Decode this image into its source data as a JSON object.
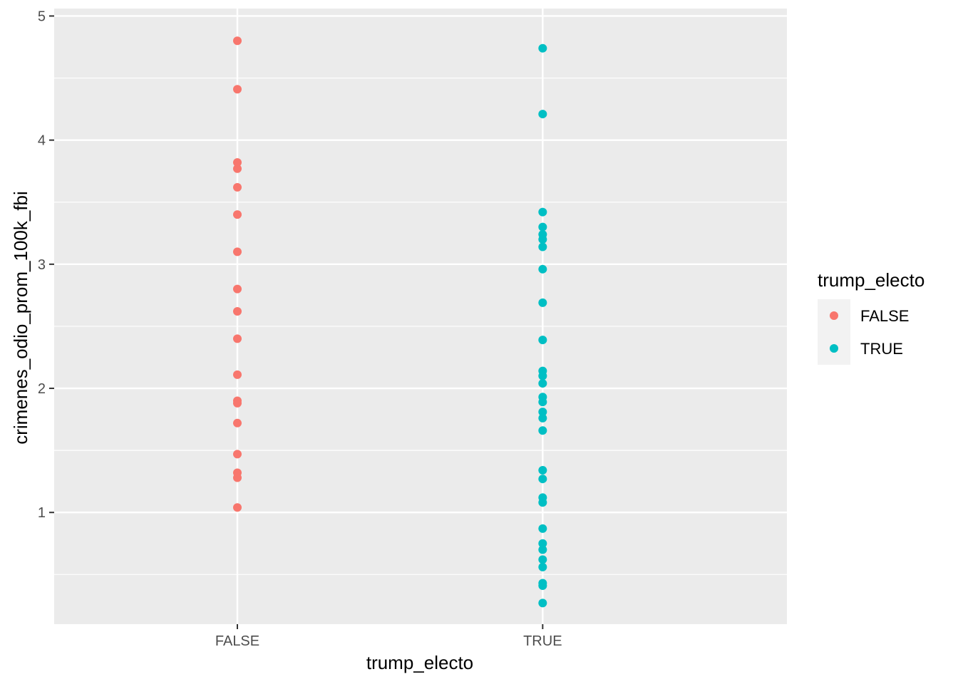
{
  "chart_data": {
    "type": "scatter",
    "xlabel": "trump_electo",
    "ylabel": "crimenes_odio_prom_100k_fbi",
    "categories": [
      "FALSE",
      "TRUE"
    ],
    "ylim": [
      0.1,
      5.06
    ],
    "yticks": [
      1,
      2,
      3,
      4,
      5
    ],
    "grid": true,
    "legend": {
      "title": "trump_electo",
      "position": "right",
      "entries": [
        "FALSE",
        "TRUE"
      ]
    },
    "colors": {
      "FALSE": "#F8766D",
      "TRUE": "#00BFC4"
    },
    "background": "#EBEBEB",
    "series": [
      {
        "name": "FALSE",
        "x": "FALSE",
        "values": [
          4.8,
          4.41,
          3.82,
          3.77,
          3.62,
          3.4,
          3.1,
          2.8,
          2.62,
          2.4,
          2.11,
          1.9,
          1.88,
          1.72,
          1.47,
          1.32,
          1.28,
          1.04
        ]
      },
      {
        "name": "TRUE",
        "x": "TRUE",
        "values": [
          4.74,
          4.21,
          3.42,
          3.3,
          3.24,
          3.2,
          3.14,
          2.96,
          2.69,
          2.39,
          2.14,
          2.1,
          2.04,
          1.93,
          1.89,
          1.81,
          1.76,
          1.66,
          1.34,
          1.27,
          1.12,
          1.08,
          0.87,
          0.75,
          0.7,
          0.62,
          0.56,
          0.43,
          0.41,
          0.27
        ]
      }
    ]
  }
}
